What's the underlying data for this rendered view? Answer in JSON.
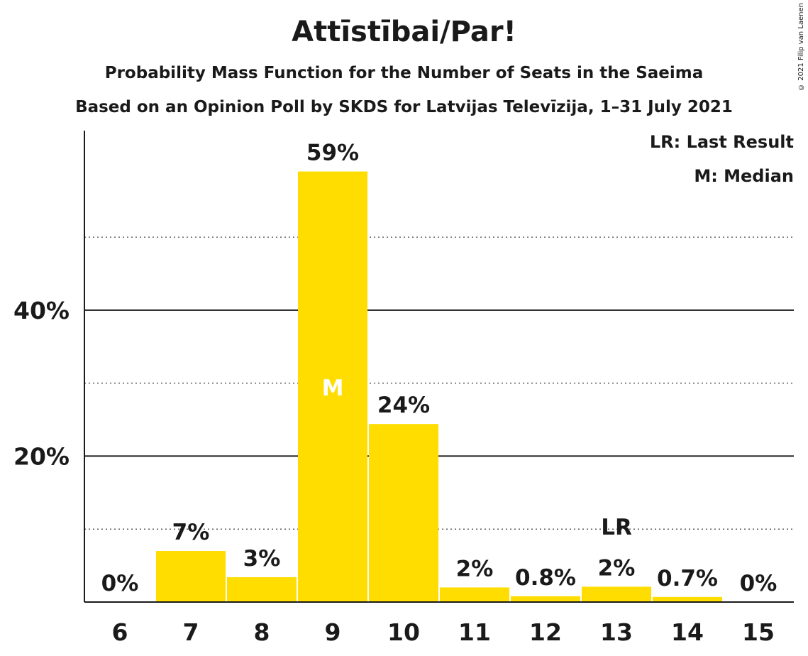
{
  "chart_data": {
    "type": "bar",
    "title": "Attīstībai/Par!",
    "subtitle": "Probability Mass Function for the Number of Seats in the Saeima",
    "subtitle2": "Based on an Opinion Poll by SKDS for Latvijas Televīzija, 1–31 July 2021",
    "copyright": "© 2021 Filip van Laenen",
    "categories": [
      "6",
      "7",
      "8",
      "9",
      "10",
      "11",
      "12",
      "13",
      "14",
      "15"
    ],
    "values": [
      0,
      7,
      3.4,
      59,
      24.4,
      2,
      0.8,
      2.1,
      0.7,
      0
    ],
    "data_labels": [
      "0%",
      "7%",
      "3%",
      "59%",
      "24%",
      "2%",
      "0.8%",
      "2%",
      "0.7%",
      "0%"
    ],
    "ylim": [
      0,
      64.6
    ],
    "y_major_ticks": [
      20,
      40
    ],
    "y_tick_labels": [
      "20%",
      "40%"
    ],
    "y_minor_ticks": [
      10,
      30,
      50
    ],
    "median_index": 3,
    "median_label": "M",
    "last_result_index": 7,
    "last_result_label": "LR",
    "legend": [
      "LR: Last Result",
      "M: Median"
    ],
    "legend_position": "top-right",
    "bar_color": "#FFDD00"
  }
}
